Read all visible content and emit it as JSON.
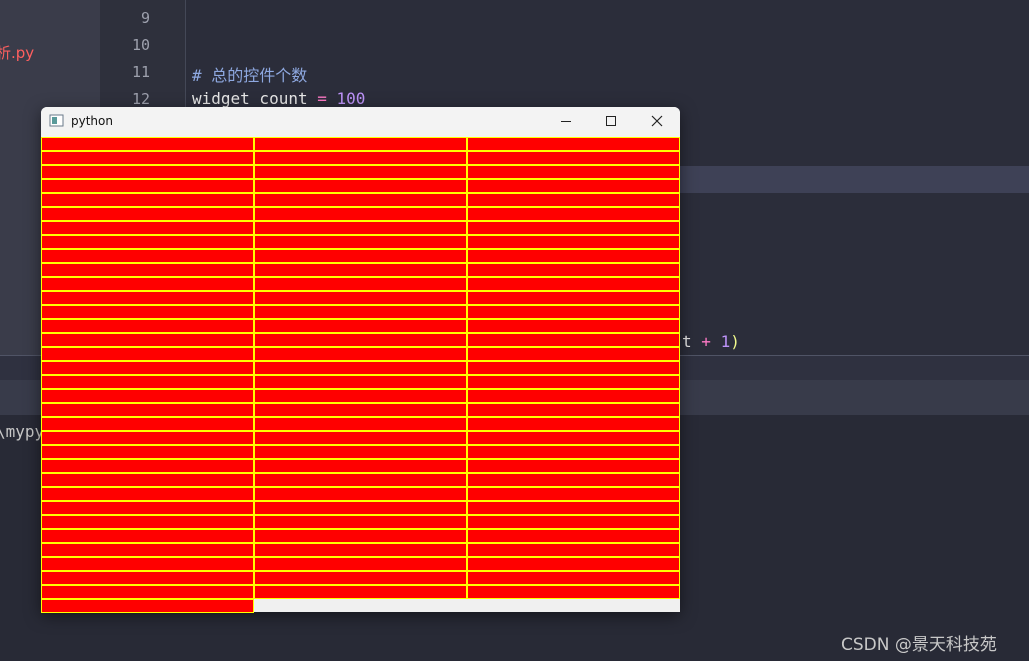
{
  "sidebar": {
    "file": "析.py"
  },
  "editor": {
    "lines": [
      {
        "number": 9
      },
      {
        "number": 10
      },
      {
        "number": 11,
        "comment": "# 总的控件个数"
      },
      {
        "number": 12,
        "name": "widget_count",
        "op": "=",
        "value": 100
      }
    ],
    "fragment": {
      "text": "t",
      "op": "+",
      "num": 1,
      "close": ")"
    }
  },
  "terminal": {
    "text": "\\mypy"
  },
  "window": {
    "title": "python"
  },
  "watermark": "CSDN @景天科技苑"
}
